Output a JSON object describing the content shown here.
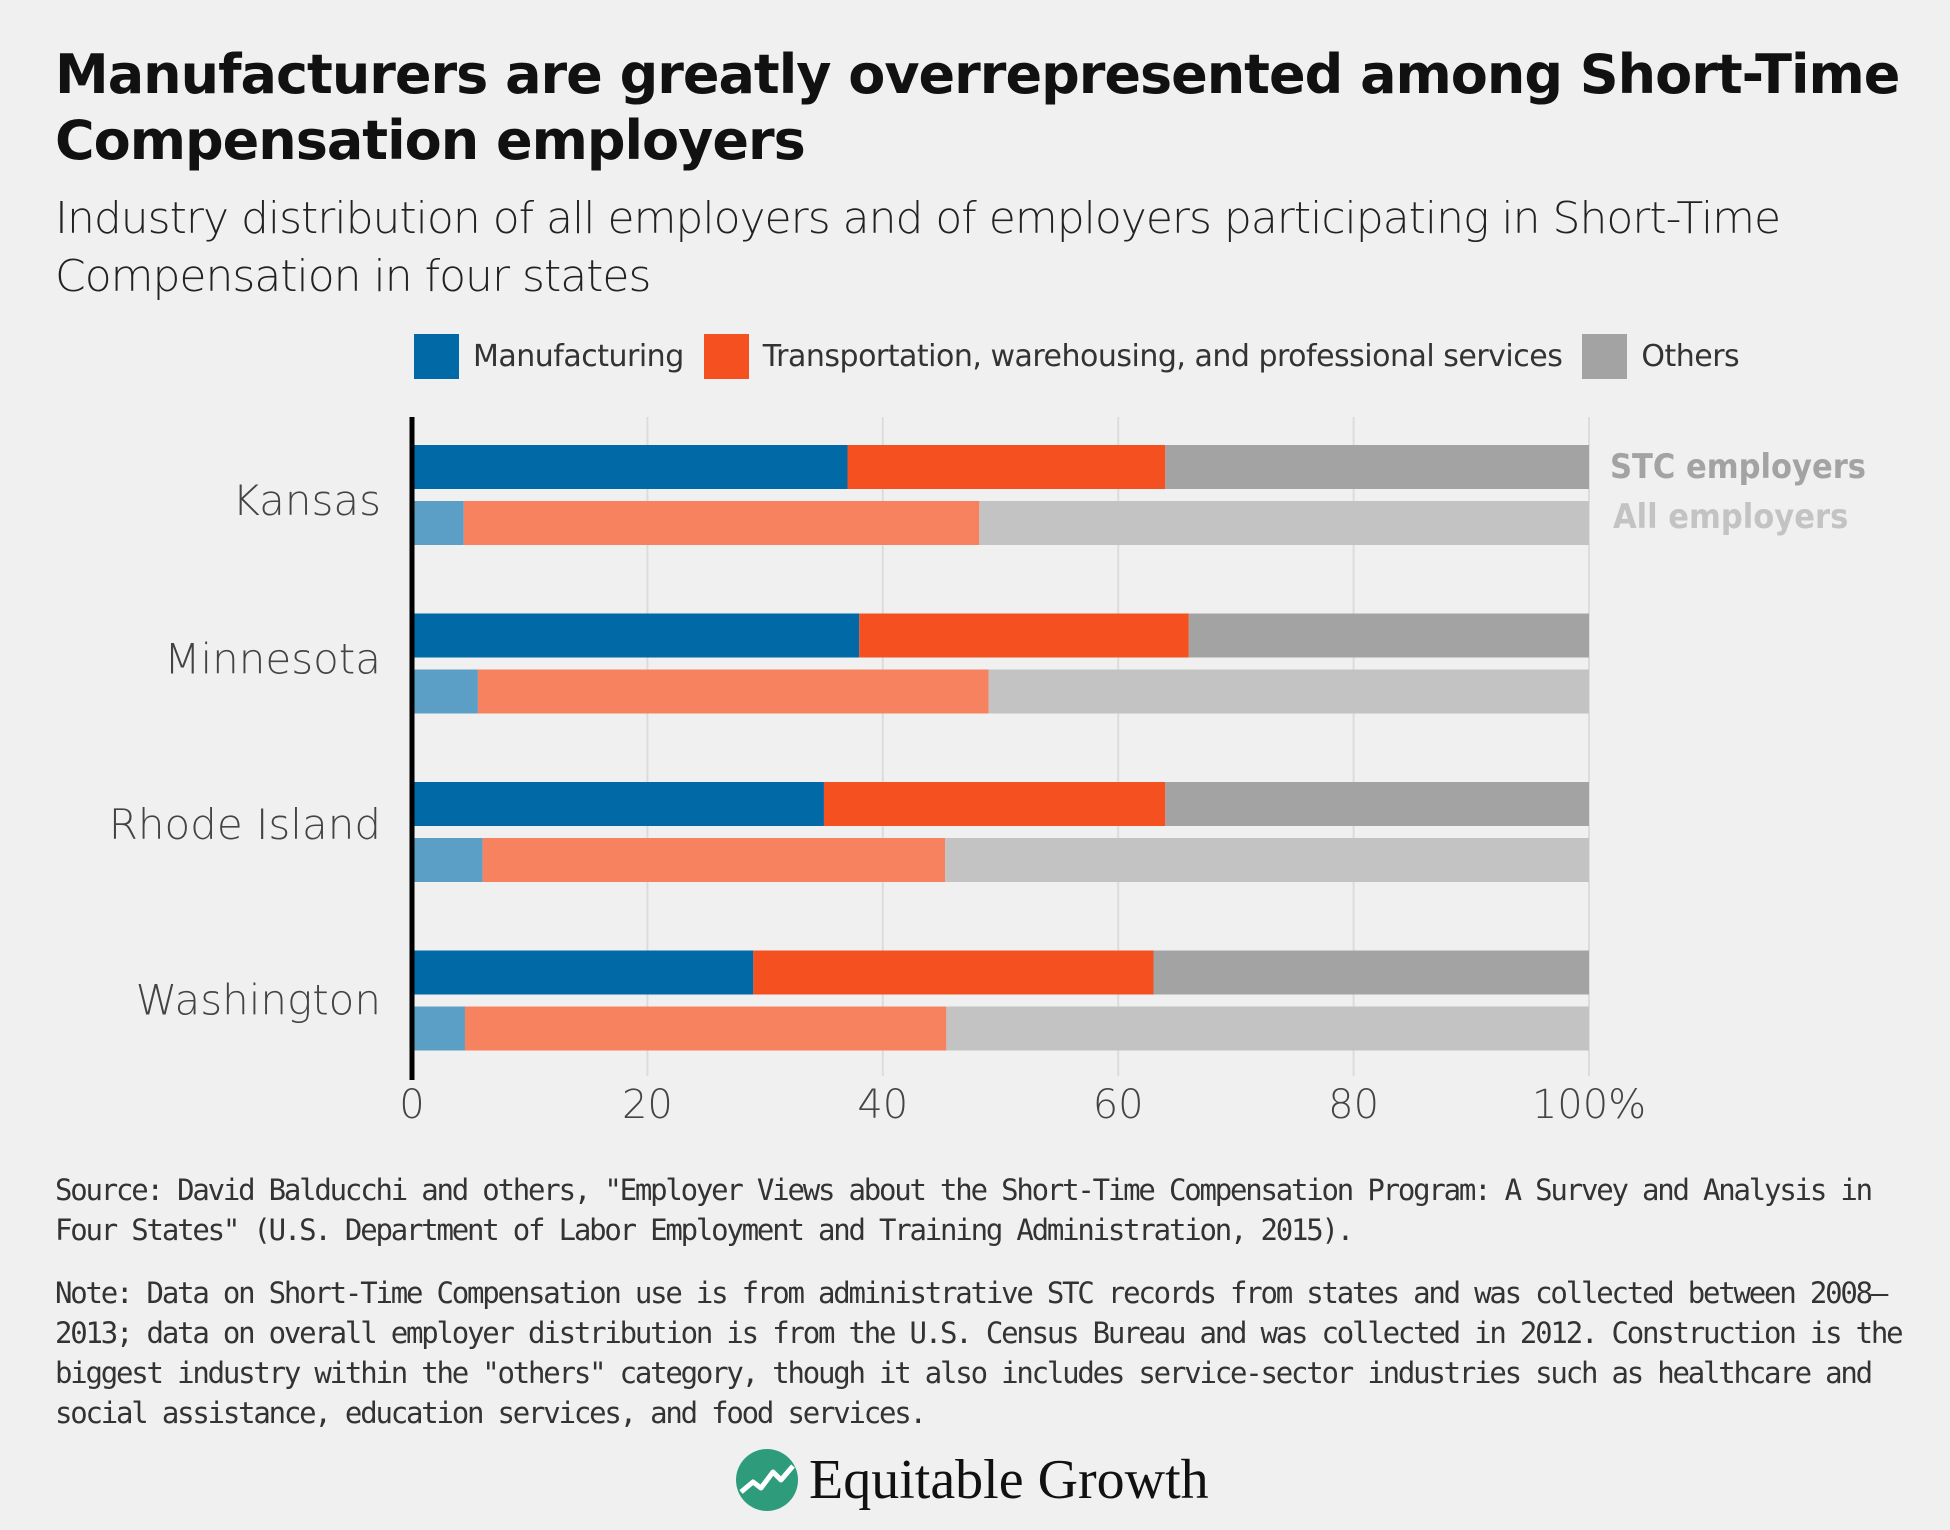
{
  "title": "Manufacturers are greatly overrepresented among Short-Time Compensation employers",
  "subtitle": "Industry distribution of all employers and of employers participating in Short-Time Compensation in four states",
  "colors": {
    "manufacturing_stc": "#0069a6",
    "manufacturing_all": "#5b9fc6",
    "transport_stc": "#f5501f",
    "transport_all": "#f7825f",
    "others_stc": "#a3a3a3",
    "others_all": "#c3c3c3",
    "background": "#f0f0f0"
  },
  "chart_data": {
    "type": "bar",
    "orientation": "horizontal",
    "stacked": true,
    "categories": [
      "Kansas",
      "Minnesota",
      "Rhode Island",
      "Washington"
    ],
    "groups": [
      "STC employers",
      "All employers"
    ],
    "legend": [
      "Manufacturing",
      "Transportation, warehousing, and professional services",
      "Others"
    ],
    "legend_position": "top",
    "series": [
      {
        "name": "Manufacturing",
        "stc": [
          37,
          38,
          35,
          29
        ],
        "all": [
          4.4,
          5.6,
          6.0,
          4.5
        ]
      },
      {
        "name": "Transportation, warehousing, and professional services",
        "stc": [
          27,
          28,
          29,
          34
        ],
        "all": [
          43.8,
          43.4,
          39.3,
          40.9
        ]
      },
      {
        "name": "Others",
        "stc": [
          36,
          34,
          36,
          37
        ],
        "all": [
          51.8,
          51.0,
          54.7,
          54.6
        ]
      }
    ],
    "xlim": [
      0,
      100
    ],
    "xticks": [
      "0",
      "20",
      "40",
      "60",
      "80",
      "100%"
    ],
    "grid": "vertical"
  },
  "footer": {
    "source": "Source: David Balducchi and others, \"Employer Views about the Short-Time Compensation Program: A Survey and Analysis in Four States\" (U.S. Department of Labor Employment and Training Administration, 2015).",
    "note": "Note: Data on Short-Time Compensation use is from administrative STC records from states and was collected between 2008–2013; data on overall employer distribution is from the U.S. Census Bureau and was collected in 2012. Construction is the biggest industry within the \"others\" category, though it also includes service-sector industries such as healthcare and social assistance, education services, and food services.",
    "logo": "Equitable Growth"
  }
}
